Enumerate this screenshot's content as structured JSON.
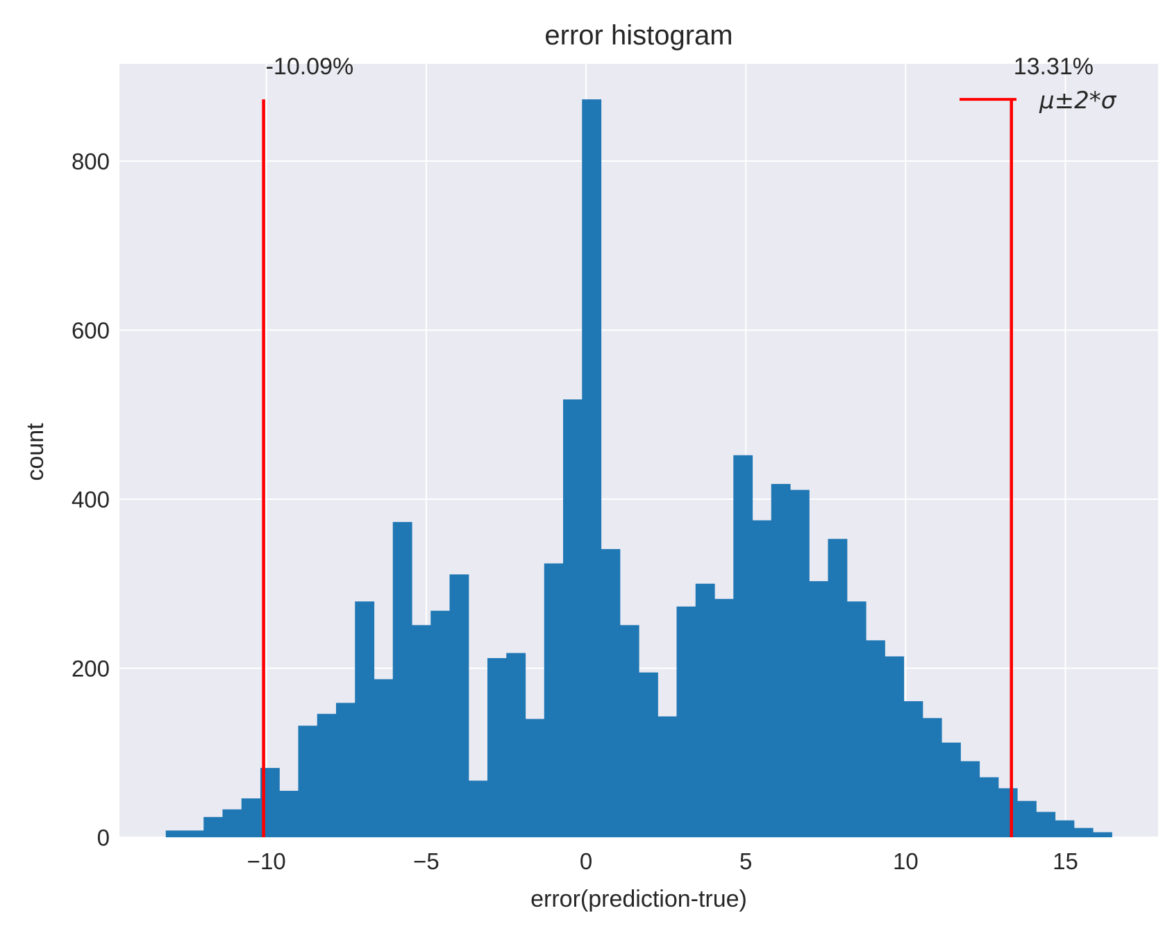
{
  "chart_data": {
    "type": "bar",
    "title": "error histogram",
    "xlabel": "error(prediction-true)",
    "ylabel": "count",
    "xlim": [
      -14.6,
      17.9
    ],
    "ylim": [
      0,
      915
    ],
    "x_ticks": [
      -10,
      -5,
      0,
      5,
      10,
      15
    ],
    "x_tick_labels": [
      "−10",
      "−5",
      "0",
      "5",
      "10",
      "15"
    ],
    "y_ticks": [
      0,
      200,
      400,
      600,
      800
    ],
    "y_tick_labels": [
      "0",
      "200",
      "400",
      "600",
      "800"
    ],
    "grid": true,
    "bar_color": "#1f77b4",
    "background_color": "#eaeaf2",
    "bin_start": -13.15,
    "bin_width": 0.592,
    "values": [
      8,
      8,
      24,
      33,
      46,
      82,
      55,
      132,
      146,
      159,
      279,
      187,
      373,
      251,
      268,
      311,
      67,
      212,
      218,
      140,
      324,
      518,
      873,
      341,
      251,
      195,
      143,
      273,
      300,
      282,
      452,
      375,
      418,
      411,
      303,
      353,
      279,
      233,
      214,
      161,
      141,
      112,
      90,
      71,
      58,
      43,
      30,
      20,
      11,
      6
    ],
    "vlines": [
      {
        "x": -10.09,
        "label": "-10.09%",
        "color": "#ff0000"
      },
      {
        "x": 13.31,
        "label": "13.31%",
        "color": "#ff0000"
      }
    ],
    "vline_top": 873,
    "legend": {
      "label": "μ±2*σ",
      "color": "#ff0000",
      "position": "top-right"
    }
  }
}
